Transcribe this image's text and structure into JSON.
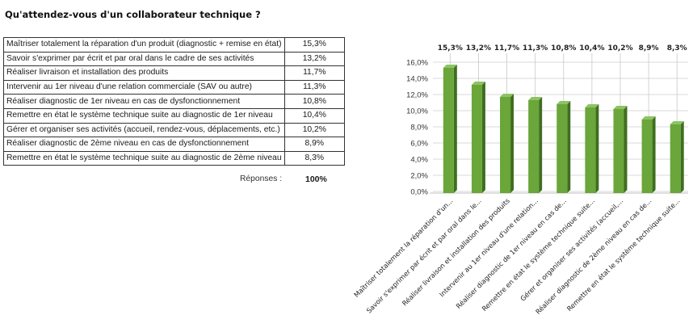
{
  "title": "Qu'attendez-vous d'un collaborateur technique ?",
  "table": {
    "rows": [
      {
        "label": "Maîtriser totalement la réparation d'un produit (diagnostic + remise en état)",
        "value": "15,3%"
      },
      {
        "label": "Savoir s'exprimer par écrit et par oral dans le cadre de ses activités",
        "value": "13,2%"
      },
      {
        "label": "Réaliser livraison et installation des produits",
        "value": "11,7%"
      },
      {
        "label": "Intervenir au 1er niveau d'une relation commerciale (SAV ou autre)",
        "value": "11,3%"
      },
      {
        "label": "Réaliser diagnostic de 1er niveau en cas de dysfonctionnement",
        "value": "10,8%"
      },
      {
        "label": "Remettre en état le système technique suite au diagnostic de 1er niveau",
        "value": "10,4%"
      },
      {
        "label": "Gérer et organiser ses activités (accueil, rendez-vous, déplacements, etc.)",
        "value": "10,2%"
      },
      {
        "label": "Réaliser diagnostic de 2ème niveau en cas de dysfonctionnement",
        "value": "8,9%"
      },
      {
        "label": "Remettre en état le système technique suite au diagnostic de 2ème niveau",
        "value": "8,3%"
      }
    ],
    "total_label": "Réponses :",
    "total_value": "100%"
  },
  "chart_data": {
    "type": "bar",
    "categories": [
      "Maîtriser totalement la réparation d'un...",
      "Savoir s'exprimer par écrit et par oral dans le...",
      "Réaliser livraison et installation des produits",
      "Intervenir au 1er niveau d'une relation...",
      "Réaliser diagnostic de 1er niveau en cas de...",
      "Remettre en état le système technique suite...",
      "Gérer et organiser ses activités (accueil,...",
      "Réaliser diagnostic de 2ème niveau en cas de...",
      "Remettre en état le système technique suite..."
    ],
    "values": [
      15.3,
      13.2,
      11.7,
      11.3,
      10.8,
      10.4,
      10.2,
      8.9,
      8.3
    ],
    "data_labels": [
      "15,3%",
      "13,2%",
      "11,7%",
      "11,3%",
      "10,8%",
      "10,4%",
      "10,2%",
      "8,9%",
      "8,3%"
    ],
    "ylim": [
      0,
      16
    ],
    "yticks": [
      "0,0%",
      "2,0%",
      "4,0%",
      "6,0%",
      "8,0%",
      "10,0%",
      "12,0%",
      "14,0%",
      "16,0%"
    ],
    "grid": true,
    "bar_color": "#6aa63a",
    "bar_dark_color": "#3f6e1f",
    "grid_color": "#d9d9d9"
  }
}
